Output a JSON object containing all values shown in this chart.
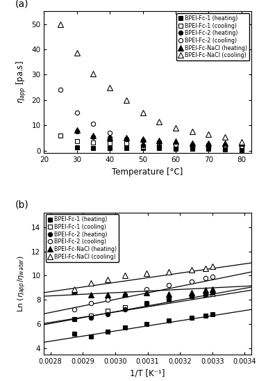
{
  "panel_a": {
    "title": "(a)",
    "xlabel": "Temperature [°C]",
    "ylabel": "η_app [pa.s]",
    "xlim": [
      20,
      83
    ],
    "ylim": [
      -1,
      55
    ],
    "yticks": [
      0,
      10,
      20,
      30,
      40,
      50
    ],
    "xticks": [
      20,
      30,
      40,
      50,
      60,
      70,
      80
    ],
    "series": {
      "fc1_heat": {
        "label": "BPEI-Fc-1 (heating)",
        "marker": "s",
        "filled": true,
        "x": [
          30,
          35,
          40,
          45,
          50,
          55,
          60,
          65,
          70,
          75,
          80
        ],
        "y": [
          1.2,
          1.0,
          1.0,
          1.0,
          1.0,
          1.0,
          0.8,
          0.8,
          0.8,
          0.5,
          0.3
        ]
      },
      "fc1_cool": {
        "label": "BPEI-Fc-1 (cooling)",
        "marker": "s",
        "filled": false,
        "x": [
          25,
          30,
          35,
          40,
          45,
          50,
          55,
          60,
          65,
          70,
          75,
          80
        ],
        "y": [
          5.8,
          3.8,
          3.2,
          3.0,
          3.0,
          1.5,
          2.0,
          1.2,
          1.5,
          1.5,
          1.5,
          1.2
        ]
      },
      "fc2_heat": {
        "label": "BPEI-Fc-2 (heating)",
        "marker": "o",
        "filled": true,
        "x": [
          30,
          35,
          40,
          45,
          50,
          55,
          60,
          65,
          70,
          75,
          80
        ],
        "y": [
          7.5,
          5.5,
          5.0,
          4.5,
          2.0,
          1.5,
          1.2,
          1.0,
          1.2,
          1.0,
          0.8
        ]
      },
      "fc2_cool": {
        "label": "BPEI-Fc-2 (cooling)",
        "marker": "o",
        "filled": false,
        "x": [
          25,
          30,
          35,
          40,
          45,
          50,
          55,
          60,
          65,
          70,
          75,
          80
        ],
        "y": [
          24.0,
          15.0,
          10.5,
          7.0,
          4.5,
          4.0,
          3.5,
          2.5,
          2.5,
          2.5,
          2.0,
          1.8
        ]
      },
      "nacl_heat": {
        "label": "BPEI-Fc-NaCl (heating)",
        "marker": "^",
        "filled": true,
        "x": [
          30,
          35,
          40,
          45,
          50,
          55,
          60,
          65,
          70,
          75,
          80
        ],
        "y": [
          8.0,
          6.0,
          5.0,
          5.0,
          4.5,
          4.0,
          3.8,
          3.0,
          3.0,
          3.0,
          2.8
        ]
      },
      "nacl_cool": {
        "label": "BPEI-Fc-NaCl (cooling)",
        "marker": "^",
        "filled": false,
        "x": [
          25,
          30,
          35,
          40,
          45,
          50,
          55,
          60,
          65,
          70,
          75,
          80
        ],
        "y": [
          50.0,
          38.5,
          30.5,
          25.0,
          20.0,
          15.0,
          11.5,
          9.0,
          7.5,
          6.5,
          5.5,
          3.5
        ]
      }
    }
  },
  "panel_b": {
    "title": "(b)",
    "xlabel": "1/T [K⁻¹]",
    "ylabel": "Ln (η_app/ηwater)",
    "xlim": [
      0.00278,
      0.00342
    ],
    "ylim": [
      3.5,
      15.2
    ],
    "yticks": [
      4,
      6,
      8,
      10,
      12,
      14
    ],
    "xtick_vals": [
      0.0028,
      0.0029,
      0.003,
      0.0031,
      0.0032,
      0.0033,
      0.0034
    ],
    "xtick_labels": [
      "0.0028",
      "0.0029",
      "0.0030",
      "0.0031",
      "0.0032",
      "0.0033",
      "0.0034"
    ],
    "series": {
      "fc1_heat": {
        "label": "BPEI-Fc-1 (heating)",
        "marker": "s",
        "filled": true,
        "x": [
          0.002874,
          0.002924,
          0.002976,
          0.00303,
          0.003096,
          0.003165,
          0.003236,
          0.003279,
          0.0033
        ],
        "y": [
          5.2,
          5.0,
          5.4,
          5.7,
          6.0,
          6.3,
          6.5,
          6.7,
          6.8
        ],
        "fit_x": [
          0.00278,
          0.00342
        ],
        "fit_y": [
          4.5,
          7.2
        ]
      },
      "fc1_cool": {
        "label": "BPEI-Fc-1 (cooling)",
        "marker": "s",
        "filled": false,
        "x": [
          0.002874,
          0.002924,
          0.002976,
          0.00303,
          0.003096,
          0.003165,
          0.003236,
          0.003279,
          0.0033
        ],
        "y": [
          6.4,
          6.7,
          7.1,
          7.4,
          7.7,
          8.0,
          8.3,
          8.4,
          8.5
        ],
        "fit_x": [
          0.00278,
          0.00342
        ],
        "fit_y": [
          6.05,
          8.8
        ]
      },
      "fc2_heat": {
        "label": "BPEI-Fc-2 (heating)",
        "marker": "o",
        "filled": true,
        "x": [
          0.002874,
          0.002924,
          0.002976,
          0.00303,
          0.003096,
          0.003165,
          0.003236,
          0.003279,
          0.0033
        ],
        "y": [
          6.4,
          6.5,
          6.8,
          7.2,
          7.7,
          8.0,
          8.3,
          8.5,
          8.6
        ],
        "fit_x": [
          0.00278,
          0.00342
        ],
        "fit_y": [
          5.95,
          9.05
        ]
      },
      "fc2_cool": {
        "label": "BPEI-Fc-2 (cooling)",
        "marker": "o",
        "filled": false,
        "x": [
          0.002874,
          0.002924,
          0.002976,
          0.00303,
          0.003096,
          0.003165,
          0.003236,
          0.003279,
          0.0033
        ],
        "y": [
          7.2,
          7.7,
          8.0,
          8.4,
          8.9,
          9.2,
          9.5,
          9.8,
          9.9
        ],
        "fit_x": [
          0.00278,
          0.00342
        ],
        "fit_y": [
          6.85,
          10.3
        ]
      },
      "nacl_heat": {
        "label": "BPEI-Fc-NaCl (heating)",
        "marker": "^",
        "filled": true,
        "x": [
          0.002874,
          0.002924,
          0.002976,
          0.00303,
          0.003096,
          0.003165,
          0.003236,
          0.003279,
          0.0033
        ],
        "y": [
          8.7,
          8.4,
          8.4,
          8.5,
          8.6,
          8.5,
          8.6,
          8.8,
          8.9
        ],
        "fit_x": [
          0.00278,
          0.00342
        ],
        "fit_y": [
          8.3,
          9.15
        ]
      },
      "nacl_cool": {
        "label": "BPEI-Fc-NaCl (cooling)",
        "marker": "^",
        "filled": false,
        "x": [
          0.002874,
          0.002924,
          0.002976,
          0.00303,
          0.003096,
          0.003165,
          0.003236,
          0.003279,
          0.0033
        ],
        "y": [
          8.9,
          9.4,
          9.7,
          10.0,
          10.2,
          10.3,
          10.5,
          10.6,
          10.75
        ],
        "fit_x": [
          0.00278,
          0.00342
        ],
        "fit_y": [
          8.6,
          11.05
        ]
      }
    }
  }
}
